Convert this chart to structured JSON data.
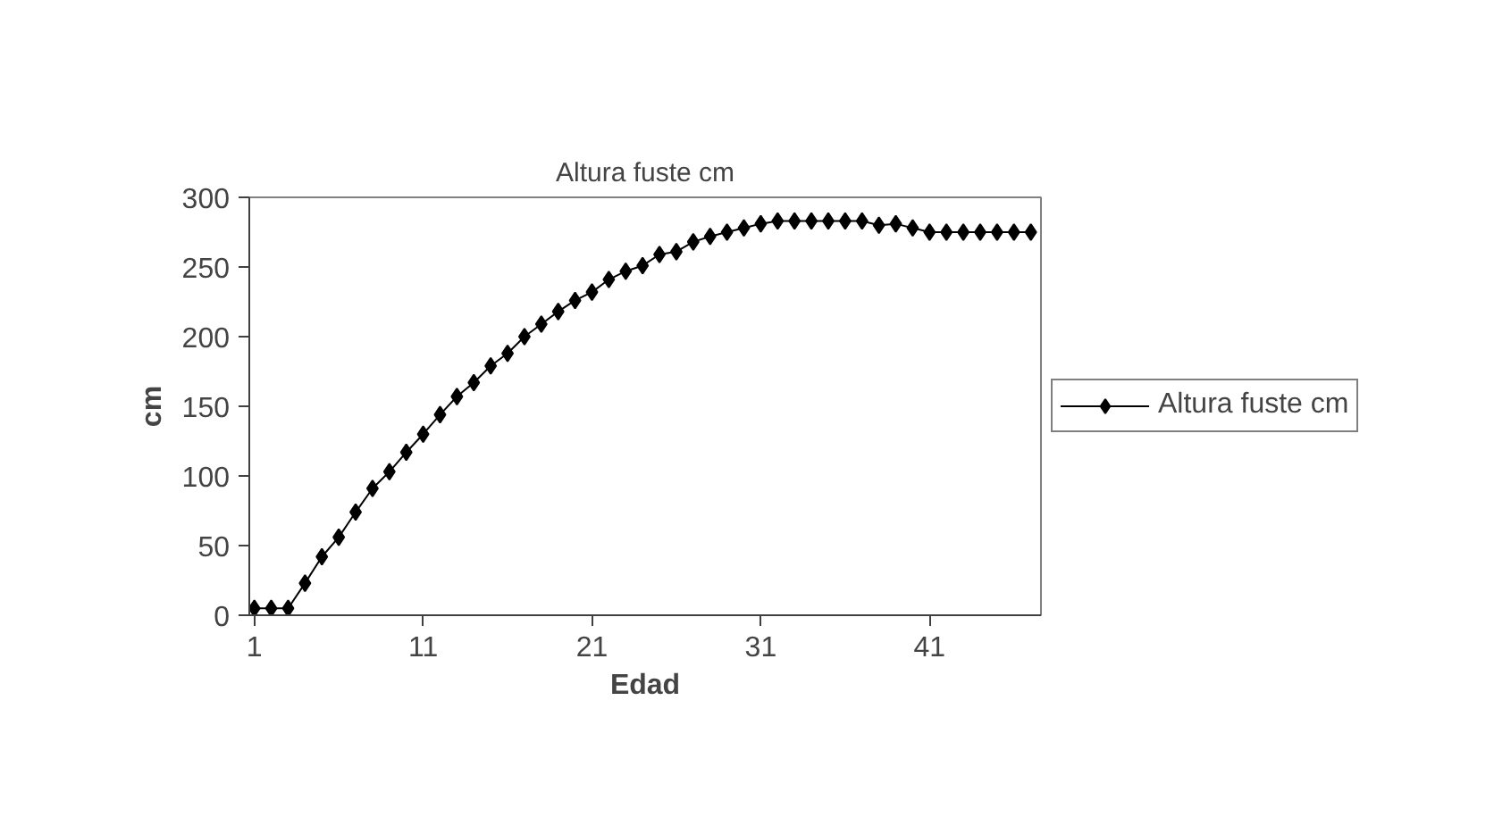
{
  "chart_data": {
    "type": "line",
    "title": "Altura fuste cm",
    "xlabel": "Edad",
    "ylabel": "cm",
    "x": [
      1,
      2,
      3,
      4,
      5,
      6,
      7,
      8,
      9,
      10,
      11,
      12,
      13,
      14,
      15,
      16,
      17,
      18,
      19,
      20,
      21,
      22,
      23,
      24,
      25,
      26,
      27,
      28,
      29,
      30,
      31,
      32,
      33,
      34,
      35,
      36,
      37,
      38,
      39,
      40,
      41,
      42,
      43,
      44,
      45,
      46,
      47
    ],
    "series": [
      {
        "name": "Altura fuste cm",
        "color": "#000000",
        "values": [
          5,
          5,
          5,
          23,
          42,
          56,
          74,
          91,
          103,
          117,
          130,
          144,
          157,
          167,
          179,
          188,
          200,
          209,
          218,
          226,
          232,
          241,
          247,
          251,
          259,
          261,
          268,
          272,
          275,
          278,
          281,
          283,
          283,
          283,
          283,
          283,
          283,
          280,
          281,
          278,
          275,
          275,
          275,
          275,
          275,
          275,
          275
        ]
      }
    ],
    "xlim": [
      0.7,
      47.6
    ],
    "xticks": [
      1,
      11,
      21,
      31,
      41
    ],
    "ylim": [
      0,
      300
    ],
    "yticks": [
      0,
      50,
      100,
      150,
      200,
      250,
      300
    ],
    "grid": false,
    "legend": "right",
    "marker": "diamond",
    "line_style": "solid"
  }
}
